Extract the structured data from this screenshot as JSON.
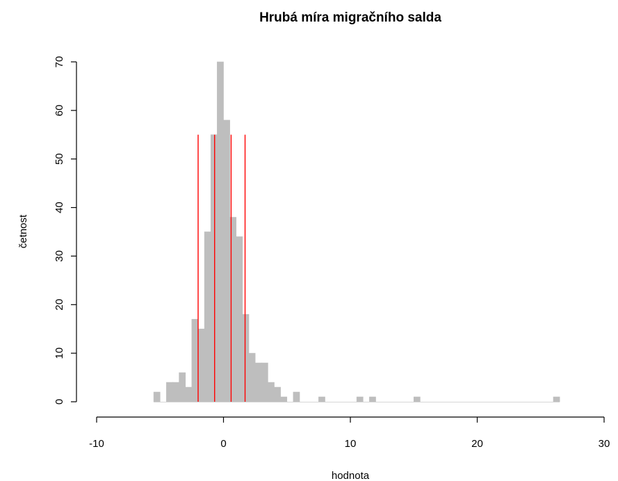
{
  "chart_data": {
    "type": "histogram",
    "title": "Hrubá míra migračního salda",
    "xlabel": "hodnota",
    "ylabel": "četnost",
    "xlim": [
      -10,
      30
    ],
    "ylim": [
      0,
      70
    ],
    "x_ticks": [
      -10,
      0,
      10,
      20,
      30
    ],
    "x_tick_labels": [
      "-10",
      "0",
      "10",
      "20",
      "30"
    ],
    "y_ticks": [
      0,
      10,
      20,
      30,
      40,
      50,
      60,
      70
    ],
    "y_tick_labels": [
      "0",
      "10",
      "20",
      "30",
      "40",
      "50",
      "60",
      "70"
    ],
    "bin_width": 0.5,
    "bins": [
      {
        "start": -5.5,
        "count": 2
      },
      {
        "start": -5.0,
        "count": 0
      },
      {
        "start": -4.5,
        "count": 4
      },
      {
        "start": -4.0,
        "count": 4
      },
      {
        "start": -3.5,
        "count": 6
      },
      {
        "start": -3.0,
        "count": 3
      },
      {
        "start": -2.5,
        "count": 17
      },
      {
        "start": -2.0,
        "count": 15
      },
      {
        "start": -1.5,
        "count": 35
      },
      {
        "start": -1.0,
        "count": 55
      },
      {
        "start": -0.5,
        "count": 70
      },
      {
        "start": 0.0,
        "count": 58
      },
      {
        "start": 0.5,
        "count": 38
      },
      {
        "start": 1.0,
        "count": 34
      },
      {
        "start": 1.5,
        "count": 18
      },
      {
        "start": 2.0,
        "count": 10
      },
      {
        "start": 2.5,
        "count": 8
      },
      {
        "start": 3.0,
        "count": 8
      },
      {
        "start": 3.5,
        "count": 4
      },
      {
        "start": 4.0,
        "count": 3
      },
      {
        "start": 4.5,
        "count": 1
      },
      {
        "start": 5.5,
        "count": 2
      },
      {
        "start": 7.5,
        "count": 1
      },
      {
        "start": 10.5,
        "count": 1
      },
      {
        "start": 11.5,
        "count": 1
      },
      {
        "start": 15.0,
        "count": 1
      },
      {
        "start": 26.0,
        "count": 1
      }
    ],
    "reference_lines": [
      -2.0,
      -0.7,
      0.6,
      1.7
    ],
    "reference_line_top": 55,
    "grid": false,
    "legend": "none",
    "colors": {
      "bar_fill": "#bebebe",
      "bar_edge": "#bebebe",
      "reference_line": "#ff0000",
      "axis": "#000000",
      "text": "#000000",
      "background": "#ffffff"
    }
  }
}
